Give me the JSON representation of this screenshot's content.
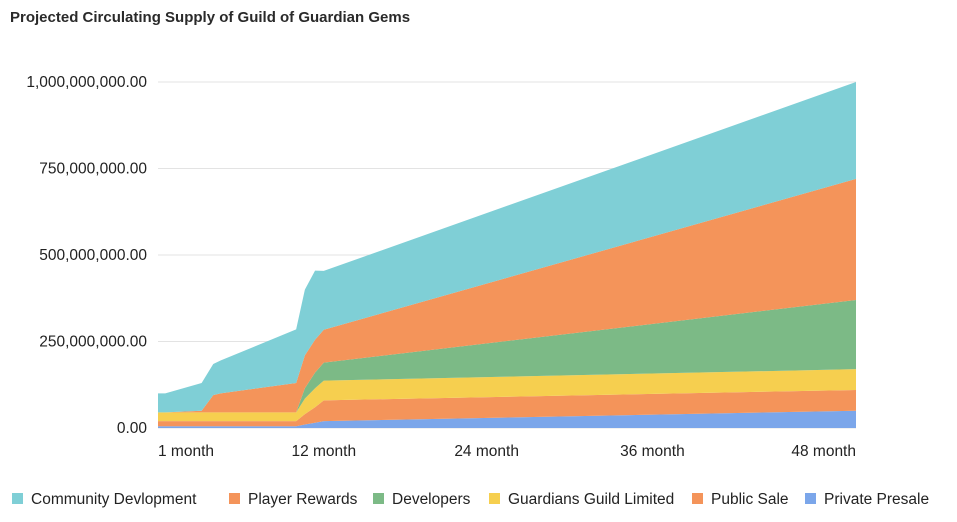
{
  "chart_data": {
    "type": "area",
    "stacked": true,
    "title": "Projected Circulating Supply of Guild of Guardian Gems",
    "xlabel": "",
    "ylabel": "",
    "x": [
      0,
      0.5,
      3,
      3.8,
      4.3,
      9.5,
      10.1,
      10.8,
      11.4,
      48
    ],
    "x_range": [
      0,
      48
    ],
    "ylim": [
      0,
      1000000000
    ],
    "x_ticks": [
      {
        "label": "1 month",
        "value": 0
      },
      {
        "label": "12 month",
        "value": 11.4
      },
      {
        "label": "24 month",
        "value": 22.6
      },
      {
        "label": "36 month",
        "value": 34
      },
      {
        "label": "48 month",
        "value": 45.3
      }
    ],
    "y_ticks": [
      {
        "label": "0.00",
        "value": 0
      },
      {
        "label": "250,000,000.00",
        "value": 250000000
      },
      {
        "label": "500,000,000.00",
        "value": 500000000
      },
      {
        "label": "750,000,000.00",
        "value": 750000000
      },
      {
        "label": "1,000,000,000.00",
        "value": 1000000000
      }
    ],
    "grid": true,
    "legend_position": "bottom",
    "series": [
      {
        "name": "Private Presale",
        "color": "#7ba6ea",
        "values": [
          5000000,
          5000000,
          5000000,
          5000000,
          5000000,
          5000000,
          10000000,
          15000000,
          20000000,
          50000000
        ]
      },
      {
        "name": "Public Sale",
        "color": "#f4945a",
        "values": [
          15000000,
          15000000,
          15000000,
          15000000,
          15000000,
          15000000,
          30000000,
          45000000,
          60000000,
          60000000
        ]
      },
      {
        "name": "Guardians Guild Limited",
        "color": "#f6cf4f",
        "values": [
          25000000,
          25000000,
          25000000,
          25000000,
          25000000,
          25000000,
          45000000,
          55000000,
          57000000,
          60000000
        ]
      },
      {
        "name": "Developers",
        "color": "#7cba86",
        "values": [
          0,
          0,
          0,
          0,
          0,
          0,
          30000000,
          45000000,
          52000000,
          200000000
        ]
      },
      {
        "name": "Player Rewards",
        "color": "#f4945a",
        "values": [
          0,
          0,
          5000000,
          50000000,
          55000000,
          85000000,
          95000000,
          95000000,
          95000000,
          350000000
        ]
      },
      {
        "name": "Community Devlopment",
        "color": "#7fcfd6",
        "values": [
          55000000,
          55000000,
          80000000,
          90000000,
          95000000,
          155000000,
          190000000,
          200000000,
          170000000,
          280000000
        ]
      }
    ]
  },
  "legend": {
    "items": [
      {
        "label": "Community Devlopment",
        "color": "#7fcfd6"
      },
      {
        "label": "Player Rewards",
        "color": "#f4945a"
      },
      {
        "label": "Developers",
        "color": "#7cba86"
      },
      {
        "label": "Guardians Guild Limited",
        "color": "#f6cf4f"
      },
      {
        "label": "Public Sale",
        "color": "#f4945a"
      },
      {
        "label": "Private Presale",
        "color": "#7ba6ea"
      }
    ]
  }
}
